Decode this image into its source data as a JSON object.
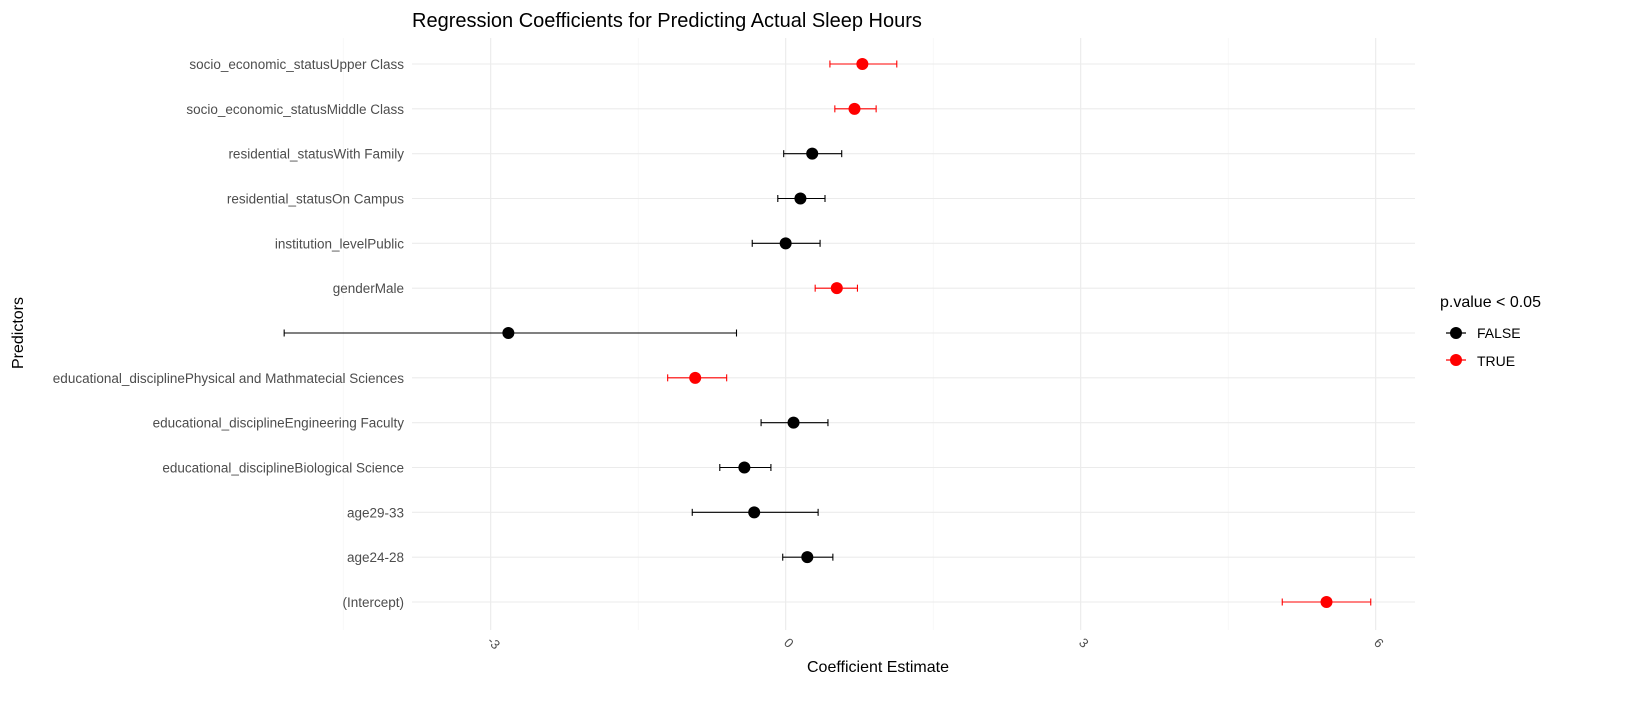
{
  "chart_data": {
    "type": "scatter",
    "subtype": "coefficient-plot-with-error-bars",
    "title": "Regression Coefficients for Predicting Actual Sleep Hours",
    "xlabel": "Coefficient Estimate",
    "ylabel": "Predictors",
    "xlim": [
      -3.8,
      6.4
    ],
    "x_ticks": [
      -3,
      0,
      3,
      6
    ],
    "x_tick_labels": [
      "-3",
      "0",
      "3",
      "6"
    ],
    "x_minor_ticks": [
      -4.5,
      -1.5,
      1.5,
      4.5
    ],
    "x_tick_label_rotation": "rotated",
    "grid": true,
    "legend": {
      "title": "p.value < 0.05",
      "placement": "right",
      "entries": [
        {
          "label": "FALSE",
          "color": "#000000"
        },
        {
          "label": "TRUE",
          "color": "#ff0000"
        }
      ]
    },
    "categories": [
      "(Intercept)",
      "age24-28",
      "age29-33",
      "educational_disciplineBiological Science",
      "educational_disciplineEngineering Faculty",
      "educational_disciplinePhysical and Mathmatecial Sciences",
      "",
      "genderMale",
      "institution_levelPublic",
      "residential_statusOn Campus",
      "residential_statusWith Family",
      "socio_economic_statusMiddle Class",
      "socio_economic_statusUpper Class"
    ],
    "estimates": [
      5.5,
      0.22,
      -0.32,
      -0.42,
      0.08,
      -0.92,
      -2.82,
      0.52,
      0.0,
      0.15,
      0.27,
      0.7,
      0.78
    ],
    "ci_low": [
      5.05,
      -0.03,
      -0.95,
      -0.67,
      -0.25,
      -1.2,
      -5.1,
      0.3,
      -0.34,
      -0.08,
      -0.02,
      0.5,
      0.45
    ],
    "ci_high": [
      5.95,
      0.48,
      0.33,
      -0.15,
      0.43,
      -0.6,
      -0.5,
      0.73,
      0.35,
      0.4,
      0.57,
      0.92,
      1.13
    ],
    "significant": [
      true,
      false,
      false,
      false,
      false,
      true,
      false,
      true,
      false,
      false,
      false,
      true,
      true
    ],
    "colors": {
      "FALSE": "#000000",
      "TRUE": "#ff0000"
    }
  }
}
